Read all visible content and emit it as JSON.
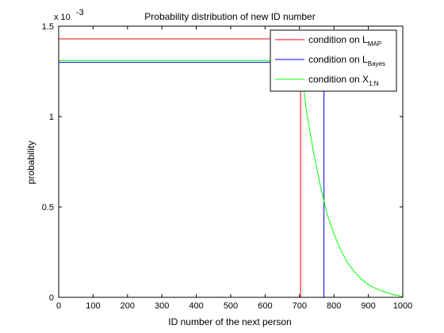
{
  "chart_data": {
    "type": "line",
    "title": "Probability distribution of new ID number",
    "xlabel": "ID number of the next person",
    "ylabel": "probability",
    "y_scale_note": {
      "base": "x 10",
      "exponent": "-3"
    },
    "xlim": [
      0,
      1000
    ],
    "ylim": [
      0,
      1.5
    ],
    "x_ticks": [
      0,
      100,
      200,
      300,
      400,
      500,
      600,
      700,
      800,
      900,
      1000
    ],
    "y_ticks": [
      0,
      0.5,
      1,
      1.5
    ],
    "x_tick_labels": [
      "0",
      "100",
      "200",
      "300",
      "400",
      "500",
      "600",
      "700",
      "800",
      "900",
      "1000"
    ],
    "y_tick_labels": [
      "0",
      "0.5",
      "1",
      "1.5"
    ],
    "grid": false,
    "legend_position": "top-right",
    "series": [
      {
        "legend_main": "condition on L",
        "legend_sub": "MAP",
        "color": "#ff0000",
        "x": [
          0,
          703,
          703,
          1000
        ],
        "y": [
          1.43,
          1.43,
          0,
          0
        ]
      },
      {
        "legend_main": "condition on L",
        "legend_sub": "Bayes",
        "color": "#0000ff",
        "x": [
          0,
          771,
          771,
          1000
        ],
        "y": [
          1.3,
          1.3,
          0,
          0
        ]
      },
      {
        "legend_main": "condition on X",
        "legend_sub": "1:N",
        "color": "#00ff00",
        "x": [
          0,
          703,
          720,
          740,
          760,
          780,
          800,
          820,
          840,
          860,
          880,
          900,
          920,
          940,
          960,
          980,
          1000
        ],
        "y": [
          1.31,
          1.31,
          1.03,
          0.81,
          0.62,
          0.46,
          0.35,
          0.26,
          0.19,
          0.14,
          0.1,
          0.07,
          0.05,
          0.035,
          0.022,
          0.012,
          0.004
        ]
      }
    ]
  }
}
